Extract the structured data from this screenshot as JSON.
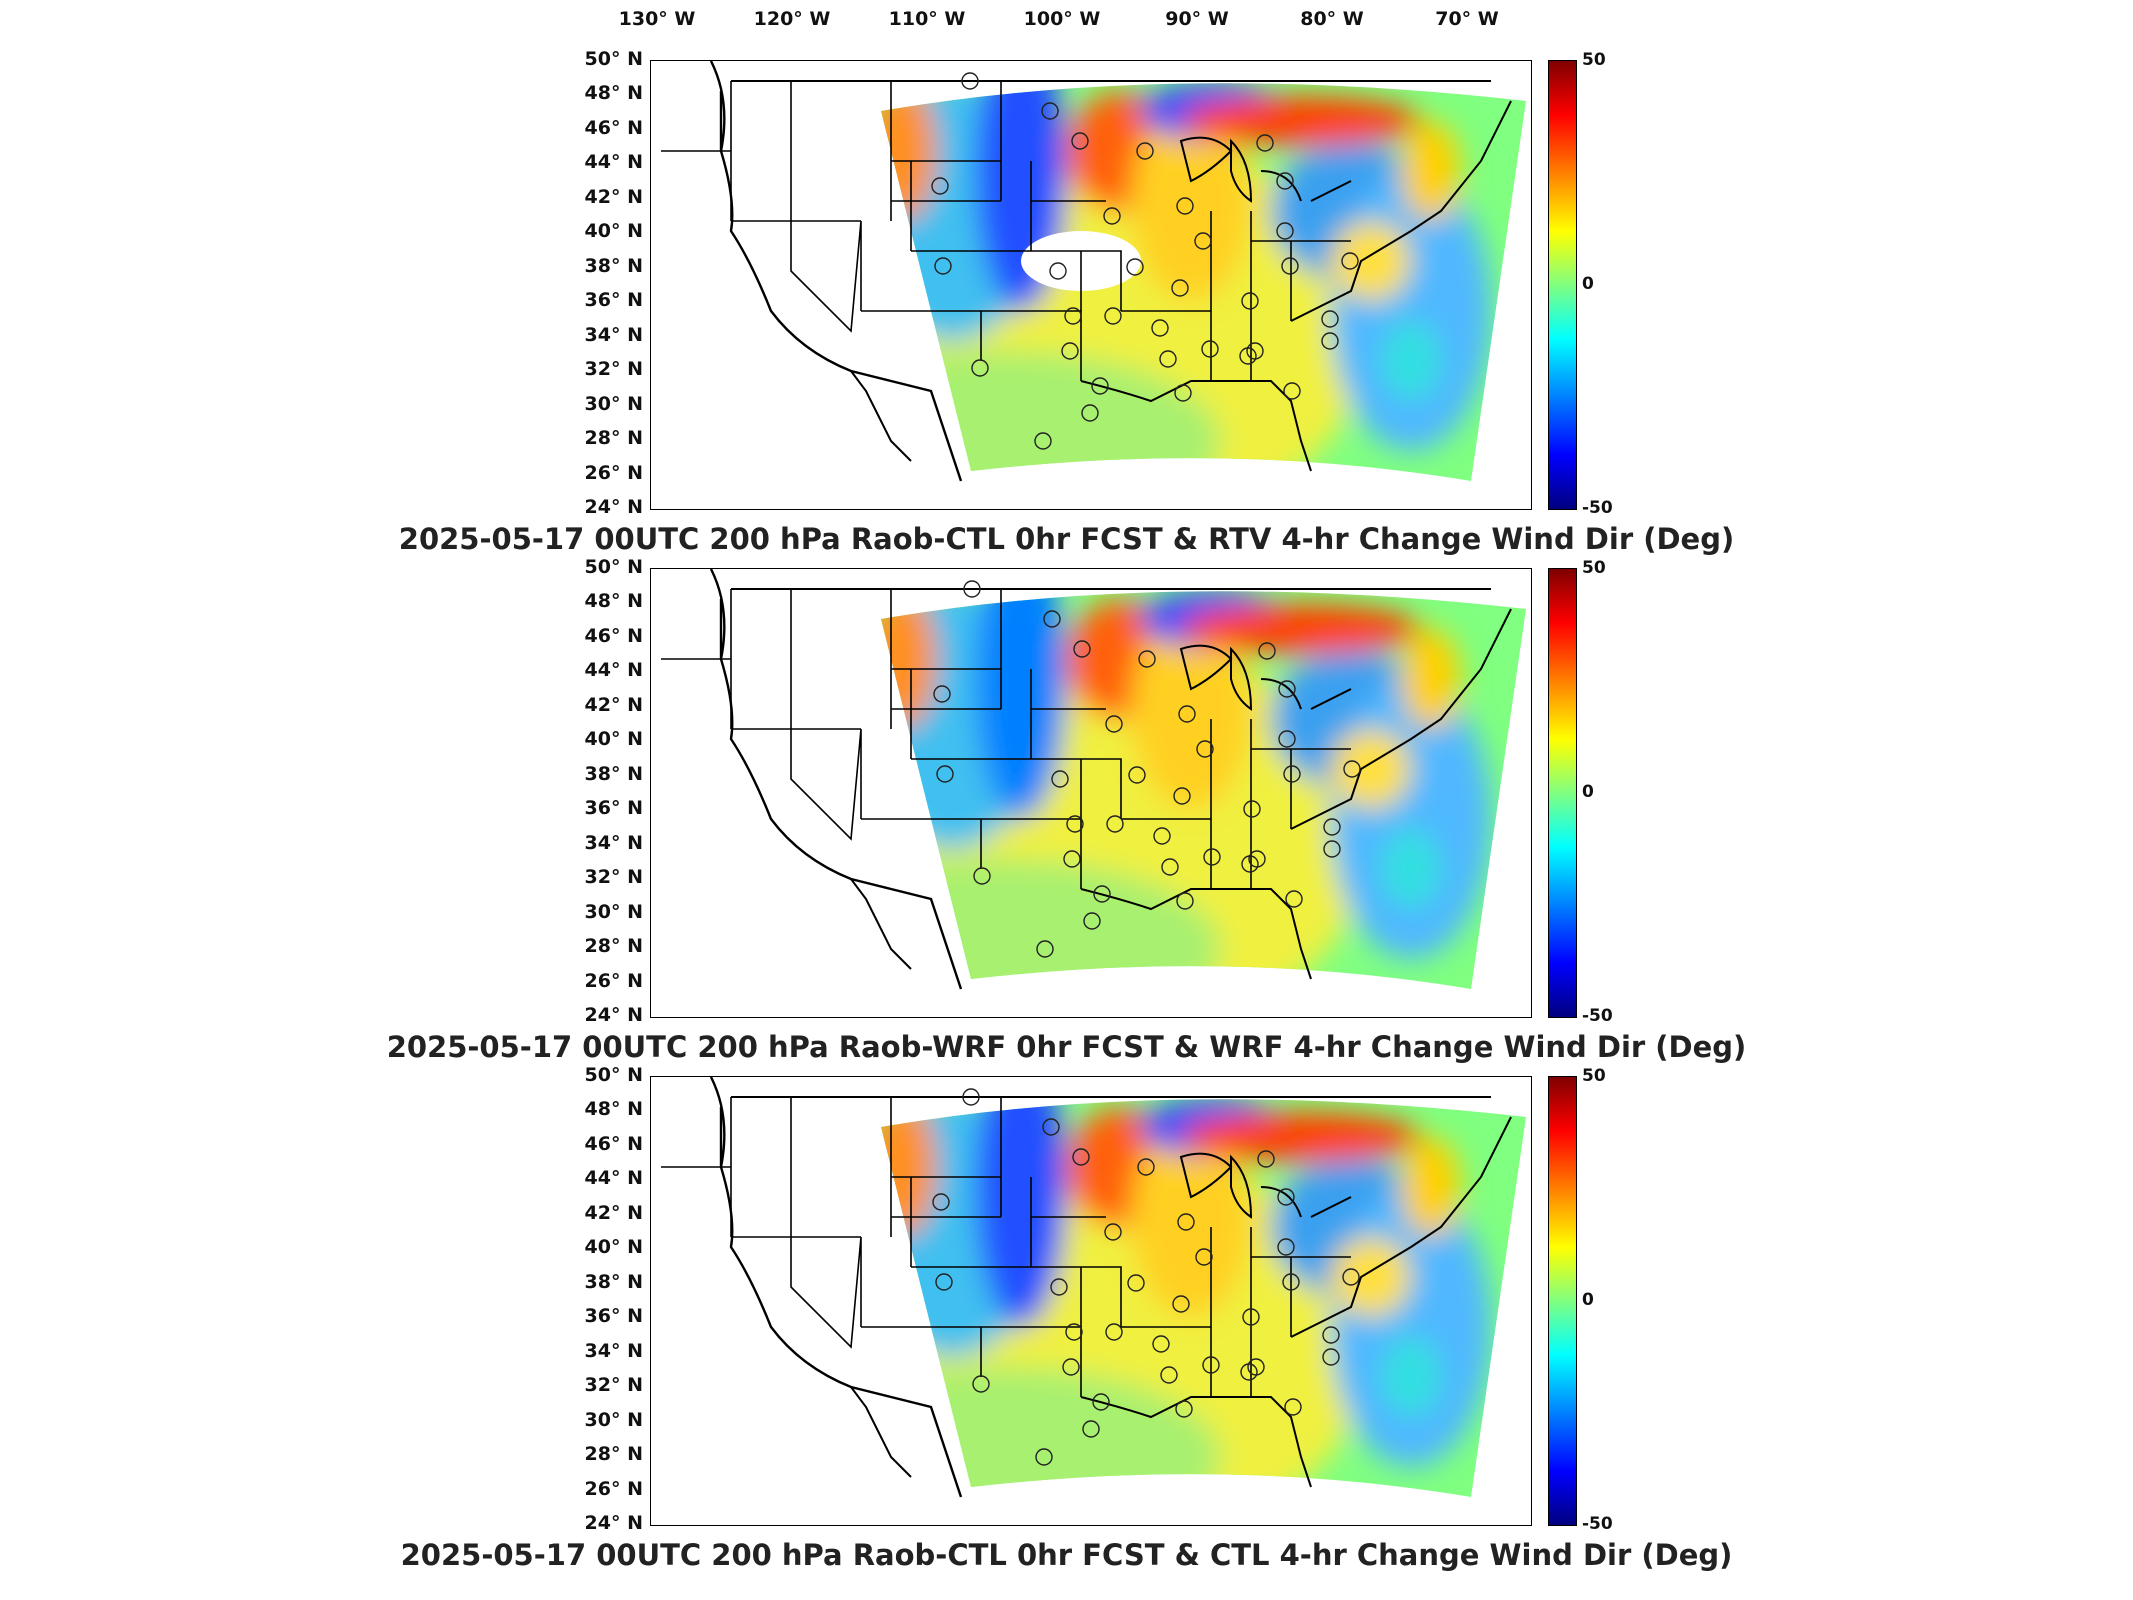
{
  "lon_labels": [
    "130° W",
    "120° W",
    "110° W",
    "100° W",
    "90° W",
    "80° W",
    "70° W"
  ],
  "lat_labels": [
    "50° N",
    "48° N",
    "46° N",
    "44° N",
    "42° N",
    "40° N",
    "38° N",
    "36° N",
    "34° N",
    "32° N",
    "30° N",
    "28° N",
    "26° N",
    "24° N"
  ],
  "colorbar": {
    "max": "50",
    "mid": "0",
    "min": "-50"
  },
  "panels": [
    {
      "title": "2025-05-17 00UTC 200 hPa Raob-CTL 0hr FCST & RTV 4-hr Change Wind Dir (Deg)"
    },
    {
      "title": "2025-05-17 00UTC 200 hPa Raob-WRF 0hr FCST & WRF 4-hr Change Wind Dir (Deg)"
    },
    {
      "title": "2025-05-17 00UTC 200 hPa Raob-CTL 0hr FCST & CTL 4-hr Change Wind Dir (Deg)"
    }
  ],
  "colors": {
    "strong_positive": "#7f0000",
    "positive": "#ff8000",
    "zero": "#80ff80",
    "negative": "#0080ff",
    "strong_negative": "#00007f"
  }
}
